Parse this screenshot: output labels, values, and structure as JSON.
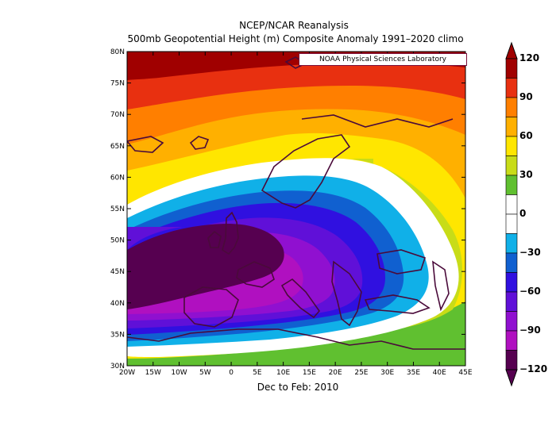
{
  "title_line1": "NCEP/NCAR Reanalysis",
  "title_line2": "500mb Geopotential Height (m) Composite Anomaly 1991–2020 climo",
  "credit": "NOAA Physical Sciences Laboratory",
  "caption": "Dec to Feb: 2010",
  "lat_labels": [
    "80N",
    "75N",
    "70N",
    "65N",
    "60N",
    "55N",
    "50N",
    "45N",
    "40N",
    "35N",
    "30N"
  ],
  "lon_labels": [
    "20W",
    "15W",
    "10W",
    "5W",
    "0",
    "5E",
    "10E",
    "15E",
    "20E",
    "25E",
    "30E",
    "35E",
    "40E",
    "45E"
  ],
  "colorbar": {
    "labels": [
      "120",
      "90",
      "60",
      "30",
      "0",
      "−30",
      "−60",
      "−90",
      "−120"
    ],
    "colors": [
      "#a00000",
      "#e83010",
      "#ff7f00",
      "#ffb000",
      "#ffe600",
      "#c8dc18",
      "#60c030",
      "#ffffff",
      "#ffffff",
      "#10b0e8",
      "#1060d0",
      "#3010e0",
      "#6010d8",
      "#9010d0",
      "#b010c0",
      "#560050"
    ]
  },
  "map": {
    "projection": "lat-lon",
    "extent_lon": [
      -20,
      45
    ],
    "extent_lat": [
      30,
      80
    ],
    "field": "500mb geopotential height anomaly",
    "units": "m",
    "anomaly_min_region": "western Europe ~ -120 m",
    "anomaly_max_region": "north of 75N ~ +120 m"
  }
}
